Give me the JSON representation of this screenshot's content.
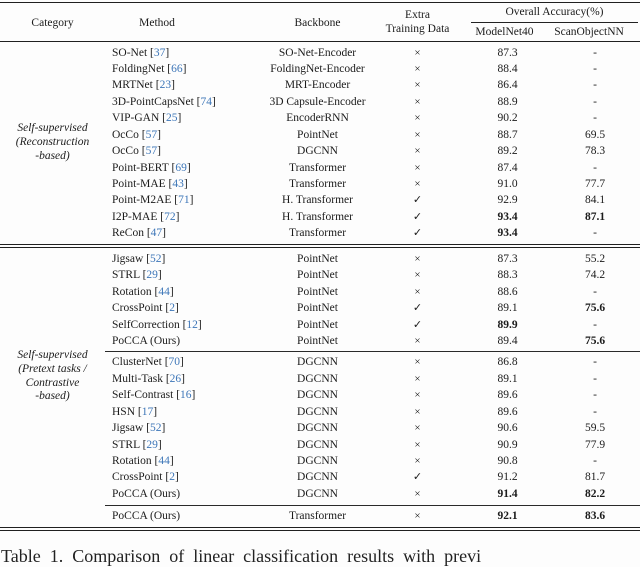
{
  "caption": "Table 1. Comparison of linear classification results with previ",
  "table": {
    "citation_color": "#3d76b8",
    "rule_color": "#202020",
    "header": {
      "category": "Category",
      "method": "Method",
      "backbone": "Backbone",
      "extra_line1": "Extra",
      "extra_line2": "Training Data",
      "overall": "Overall Accuracy(%)",
      "col_modelnet": "ModelNet40",
      "col_scanobject": "ScanObjectNN"
    },
    "sections": [
      {
        "category": "Self-supervised\n(Reconstruction\n-based)",
        "blocks": [
          [
            {
              "method": "SO-Net",
              "ref": "37",
              "backbone": "SO-Net-Encoder",
              "extra": "×",
              "mn40": "87.3",
              "mn40_bold": false,
              "sonn": "-",
              "sonn_bold": false
            },
            {
              "method": "FoldingNet",
              "ref": "66",
              "backbone": "FoldingNet-Encoder",
              "extra": "×",
              "mn40": "88.4",
              "mn40_bold": false,
              "sonn": "-",
              "sonn_bold": false
            },
            {
              "method": "MRTNet",
              "ref": "23",
              "backbone": "MRT-Encoder",
              "extra": "×",
              "mn40": "86.4",
              "mn40_bold": false,
              "sonn": "-",
              "sonn_bold": false
            },
            {
              "method": "3D-PointCapsNet",
              "ref": "74",
              "backbone": "3D Capsule-Encoder",
              "extra": "×",
              "mn40": "88.9",
              "mn40_bold": false,
              "sonn": "-",
              "sonn_bold": false
            },
            {
              "method": "VIP-GAN",
              "ref": "25",
              "backbone": "EncoderRNN",
              "extra": "×",
              "mn40": "90.2",
              "mn40_bold": false,
              "sonn": "-",
              "sonn_bold": false
            },
            {
              "method": "OcCo",
              "ref": "57",
              "backbone": "PointNet",
              "extra": "×",
              "mn40": "88.7",
              "mn40_bold": false,
              "sonn": "69.5",
              "sonn_bold": false
            },
            {
              "method": "OcCo",
              "ref": "57",
              "backbone": "DGCNN",
              "extra": "×",
              "mn40": "89.2",
              "mn40_bold": false,
              "sonn": "78.3",
              "sonn_bold": false
            },
            {
              "method": "Point-BERT",
              "ref": "69",
              "backbone": "Transformer",
              "extra": "×",
              "mn40": "87.4",
              "mn40_bold": false,
              "sonn": "-",
              "sonn_bold": false
            },
            {
              "method": "Point-MAE",
              "ref": "43",
              "backbone": "Transformer",
              "extra": "×",
              "mn40": "91.0",
              "mn40_bold": false,
              "sonn": "77.7",
              "sonn_bold": false
            },
            {
              "method": "Point-M2AE",
              "ref": "71",
              "backbone": "H. Transformer",
              "extra": "✓",
              "mn40": "92.9",
              "mn40_bold": false,
              "sonn": "84.1",
              "sonn_bold": false
            },
            {
              "method": "I2P-MAE",
              "ref": "72",
              "backbone": "H. Transformer",
              "extra": "✓",
              "mn40": "93.4",
              "mn40_bold": true,
              "sonn": "87.1",
              "sonn_bold": true
            },
            {
              "method": "ReCon",
              "ref": "47",
              "backbone": "Transformer",
              "extra": "✓",
              "mn40": "93.4",
              "mn40_bold": true,
              "sonn": "-",
              "sonn_bold": false
            }
          ]
        ]
      },
      {
        "category": "Self-supervised\n(Pretext tasks /\nContrastive\n-based)",
        "blocks": [
          [
            {
              "method": "Jigsaw",
              "ref": "52",
              "backbone": "PointNet",
              "extra": "×",
              "mn40": "87.3",
              "mn40_bold": false,
              "sonn": "55.2",
              "sonn_bold": false
            },
            {
              "method": "STRL",
              "ref": "29",
              "backbone": "PointNet",
              "extra": "×",
              "mn40": "88.3",
              "mn40_bold": false,
              "sonn": "74.2",
              "sonn_bold": false
            },
            {
              "method": "Rotation",
              "ref": "44",
              "backbone": "PointNet",
              "extra": "×",
              "mn40": "88.6",
              "mn40_bold": false,
              "sonn": "-",
              "sonn_bold": false
            },
            {
              "method": "CrossPoint",
              "ref": "2",
              "backbone": "PointNet",
              "extra": "✓",
              "mn40": "89.1",
              "mn40_bold": false,
              "sonn": "75.6",
              "sonn_bold": true
            },
            {
              "method": "SelfCorrection",
              "ref": "12",
              "backbone": "PointNet",
              "extra": "✓",
              "mn40": "89.9",
              "mn40_bold": true,
              "sonn": "-",
              "sonn_bold": false
            },
            {
              "method": "PoCCA (Ours)",
              "ref": null,
              "backbone": "PointNet",
              "extra": "×",
              "mn40": "89.4",
              "mn40_bold": false,
              "sonn": "75.6",
              "sonn_bold": true
            }
          ],
          [
            {
              "method": "ClusterNet",
              "ref": "70",
              "backbone": "DGCNN",
              "extra": "×",
              "mn40": "86.8",
              "mn40_bold": false,
              "sonn": "-",
              "sonn_bold": false
            },
            {
              "method": "Multi-Task",
              "ref": "26",
              "backbone": "DGCNN",
              "extra": "×",
              "mn40": "89.1",
              "mn40_bold": false,
              "sonn": "-",
              "sonn_bold": false
            },
            {
              "method": "Self-Contrast",
              "ref": "16",
              "backbone": "DGCNN",
              "extra": "×",
              "mn40": "89.6",
              "mn40_bold": false,
              "sonn": "-",
              "sonn_bold": false
            },
            {
              "method": "HSN",
              "ref": "17",
              "backbone": "DGCNN",
              "extra": "×",
              "mn40": "89.6",
              "mn40_bold": false,
              "sonn": "-",
              "sonn_bold": false
            },
            {
              "method": "Jigsaw",
              "ref": "52",
              "backbone": "DGCNN",
              "extra": "×",
              "mn40": "90.6",
              "mn40_bold": false,
              "sonn": "59.5",
              "sonn_bold": false
            },
            {
              "method": "STRL",
              "ref": "29",
              "backbone": "DGCNN",
              "extra": "×",
              "mn40": "90.9",
              "mn40_bold": false,
              "sonn": "77.9",
              "sonn_bold": false
            },
            {
              "method": "Rotation",
              "ref": "44",
              "backbone": "DGCNN",
              "extra": "×",
              "mn40": "90.8",
              "mn40_bold": false,
              "sonn": "-",
              "sonn_bold": false
            },
            {
              "method": "CrossPoint",
              "ref": "2",
              "backbone": "DGCNN",
              "extra": "✓",
              "mn40": "91.2",
              "mn40_bold": false,
              "sonn": "81.7",
              "sonn_bold": false
            },
            {
              "method": "PoCCA (Ours)",
              "ref": null,
              "backbone": "DGCNN",
              "extra": "×",
              "mn40": "91.4",
              "mn40_bold": true,
              "sonn": "82.2",
              "sonn_bold": true
            }
          ]
        ]
      },
      {
        "category": "",
        "blocks": [
          [
            {
              "method": "PoCCA (Ours)",
              "ref": null,
              "backbone": "Transformer",
              "extra": "×",
              "mn40": "92.1",
              "mn40_bold": true,
              "sonn": "83.6",
              "sonn_bold": true
            }
          ]
        ]
      }
    ]
  }
}
